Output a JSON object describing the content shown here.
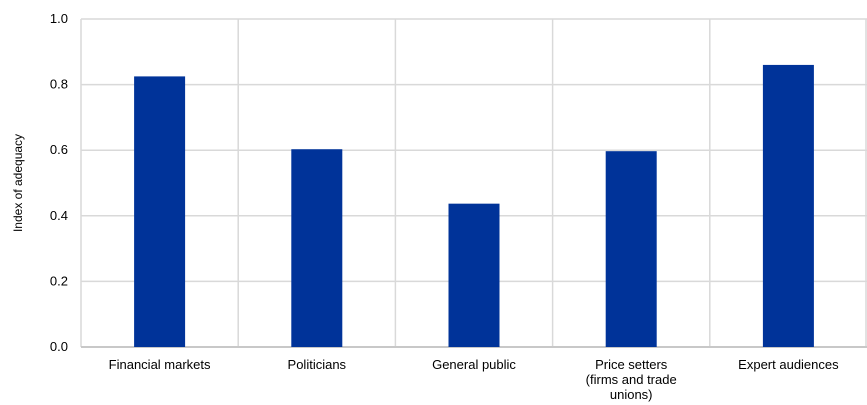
{
  "chart_data": {
    "type": "bar",
    "categories": [
      [
        "Financial markets"
      ],
      [
        "Politicians"
      ],
      [
        "General public"
      ],
      [
        "Price setters",
        "(firms and trade",
        "unions)"
      ],
      [
        "Expert audiences"
      ]
    ],
    "values": [
      0.825,
      0.603,
      0.437,
      0.597,
      0.86
    ],
    "title": "",
    "xlabel": "",
    "ylabel": "Index of adequacy",
    "ylim": [
      0,
      1.0
    ],
    "yticks": [
      "0.0",
      "0.2",
      "0.4",
      "0.6",
      "0.8",
      "1.0"
    ],
    "grid": true,
    "bar_color": "#003399",
    "grid_color": "#d9d9d9"
  }
}
